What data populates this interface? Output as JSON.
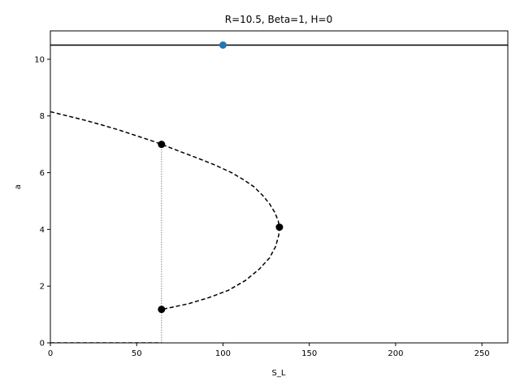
{
  "chart_data": {
    "type": "line",
    "title": "R=10.5, Beta=1, H=0",
    "xlabel": "S_L",
    "ylabel": "a",
    "xlim": [
      0,
      265
    ],
    "ylim": [
      0,
      11
    ],
    "xticks": [
      "0",
      "50",
      "100",
      "150",
      "200",
      "250"
    ],
    "yticks": [
      "0",
      "2",
      "4",
      "6",
      "8",
      "10"
    ],
    "grid": false,
    "series": [
      {
        "style": "solid",
        "color": "#000000",
        "points": [
          [
            0,
            10.5
          ],
          [
            265,
            10.5
          ]
        ]
      },
      {
        "style": "dashed",
        "color": "#000000",
        "points": [
          [
            0,
            8.15
          ],
          [
            10,
            8.0
          ],
          [
            20,
            7.85
          ],
          [
            30,
            7.68
          ],
          [
            40,
            7.5
          ],
          [
            50,
            7.3
          ],
          [
            60,
            7.1
          ],
          [
            64.4,
            7.0
          ],
          [
            75,
            6.75
          ],
          [
            85,
            6.52
          ],
          [
            95,
            6.28
          ],
          [
            105,
            6.0
          ],
          [
            112,
            5.75
          ],
          [
            118,
            5.5
          ],
          [
            123,
            5.2
          ],
          [
            127,
            4.9
          ],
          [
            130,
            4.6
          ],
          [
            132,
            4.3
          ],
          [
            132.7,
            4.08
          ],
          [
            132.3,
            3.8
          ],
          [
            130.5,
            3.4
          ],
          [
            127,
            3.0
          ],
          [
            121,
            2.6
          ],
          [
            113,
            2.2
          ],
          [
            103,
            1.85
          ],
          [
            92,
            1.6
          ],
          [
            80,
            1.38
          ],
          [
            70,
            1.25
          ],
          [
            64.4,
            1.18
          ]
        ]
      },
      {
        "style": "dashed",
        "color": "#000000",
        "points": [
          [
            0,
            0.0
          ],
          [
            64.4,
            0.0
          ]
        ]
      },
      {
        "style": "dotted",
        "color": "#888888",
        "points": [
          [
            64.4,
            0.0
          ],
          [
            64.4,
            7.0
          ]
        ]
      }
    ],
    "markers": [
      {
        "x": 100,
        "y": 10.5,
        "color": "#1f77b4"
      },
      {
        "x": 64.4,
        "y": 7.0,
        "color": "#000000"
      },
      {
        "x": 132.7,
        "y": 4.08,
        "color": "#000000"
      },
      {
        "x": 64.4,
        "y": 1.18,
        "color": "#000000"
      }
    ]
  }
}
